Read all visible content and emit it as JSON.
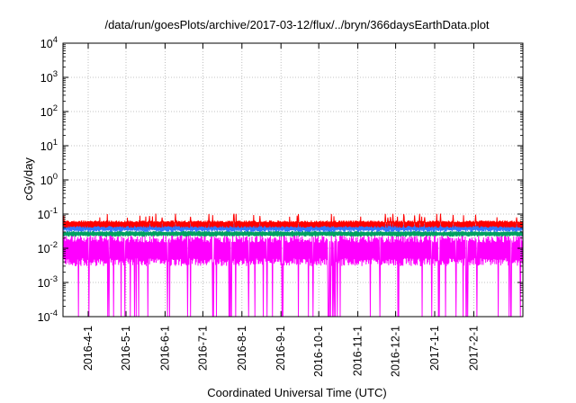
{
  "chart_data": {
    "type": "area",
    "title": "/data/run/goesPlots/archive/2017-03-12/flux/../bryn/366daysEarthData.plot",
    "xlabel": "Coordinated Universal Time (UTC)",
    "ylabel": "cGy/day",
    "yscale": "log",
    "ylim": [
      0.0001,
      10000
    ],
    "xlim": [
      "2016-03-12",
      "2017-03-12"
    ],
    "grid": true,
    "y_ticks": [
      {
        "value": 0.0001,
        "base": "10",
        "exp": "-4"
      },
      {
        "value": 0.001,
        "base": "10",
        "exp": "-3"
      },
      {
        "value": 0.01,
        "base": "10",
        "exp": "-2"
      },
      {
        "value": 0.1,
        "base": "10",
        "exp": "-1"
      },
      {
        "value": 1,
        "base": "10",
        "exp": "0"
      },
      {
        "value": 10,
        "base": "10",
        "exp": "1"
      },
      {
        "value": 100,
        "base": "10",
        "exp": "2"
      },
      {
        "value": 1000,
        "base": "10",
        "exp": "3"
      },
      {
        "value": 10000,
        "base": "10",
        "exp": "4"
      }
    ],
    "x_ticks": [
      {
        "date": "2016-04-01",
        "label": "2016-4-1"
      },
      {
        "date": "2016-05-01",
        "label": "2016-5-1"
      },
      {
        "date": "2016-06-01",
        "label": "2016-6-1"
      },
      {
        "date": "2016-07-01",
        "label": "2016-7-1"
      },
      {
        "date": "2016-08-01",
        "label": "2016-8-1"
      },
      {
        "date": "2016-09-01",
        "label": "2016-9-1"
      },
      {
        "date": "2016-10-01",
        "label": "2016-10-1"
      },
      {
        "date": "2016-11-01",
        "label": "2016-11-1"
      },
      {
        "date": "2016-12-01",
        "label": "2016-12-1"
      },
      {
        "date": "2017-01-01",
        "label": "2017-1-1"
      },
      {
        "date": "2017-02-01",
        "label": "2017-2-1"
      }
    ],
    "series": [
      {
        "color": "#ff0000",
        "typical_upper": 0.065,
        "typical_lower": 0.04
      },
      {
        "color": "#3377ff",
        "typical_upper": 0.055,
        "typical_lower": 0.03
      },
      {
        "color": "#00a060",
        "typical_upper": 0.032,
        "typical_lower": 0.022
      },
      {
        "color": "#ff00ff",
        "typical_upper": 0.025,
        "typical_lower": 0.003,
        "dropouts_to": 0.0001
      }
    ]
  }
}
